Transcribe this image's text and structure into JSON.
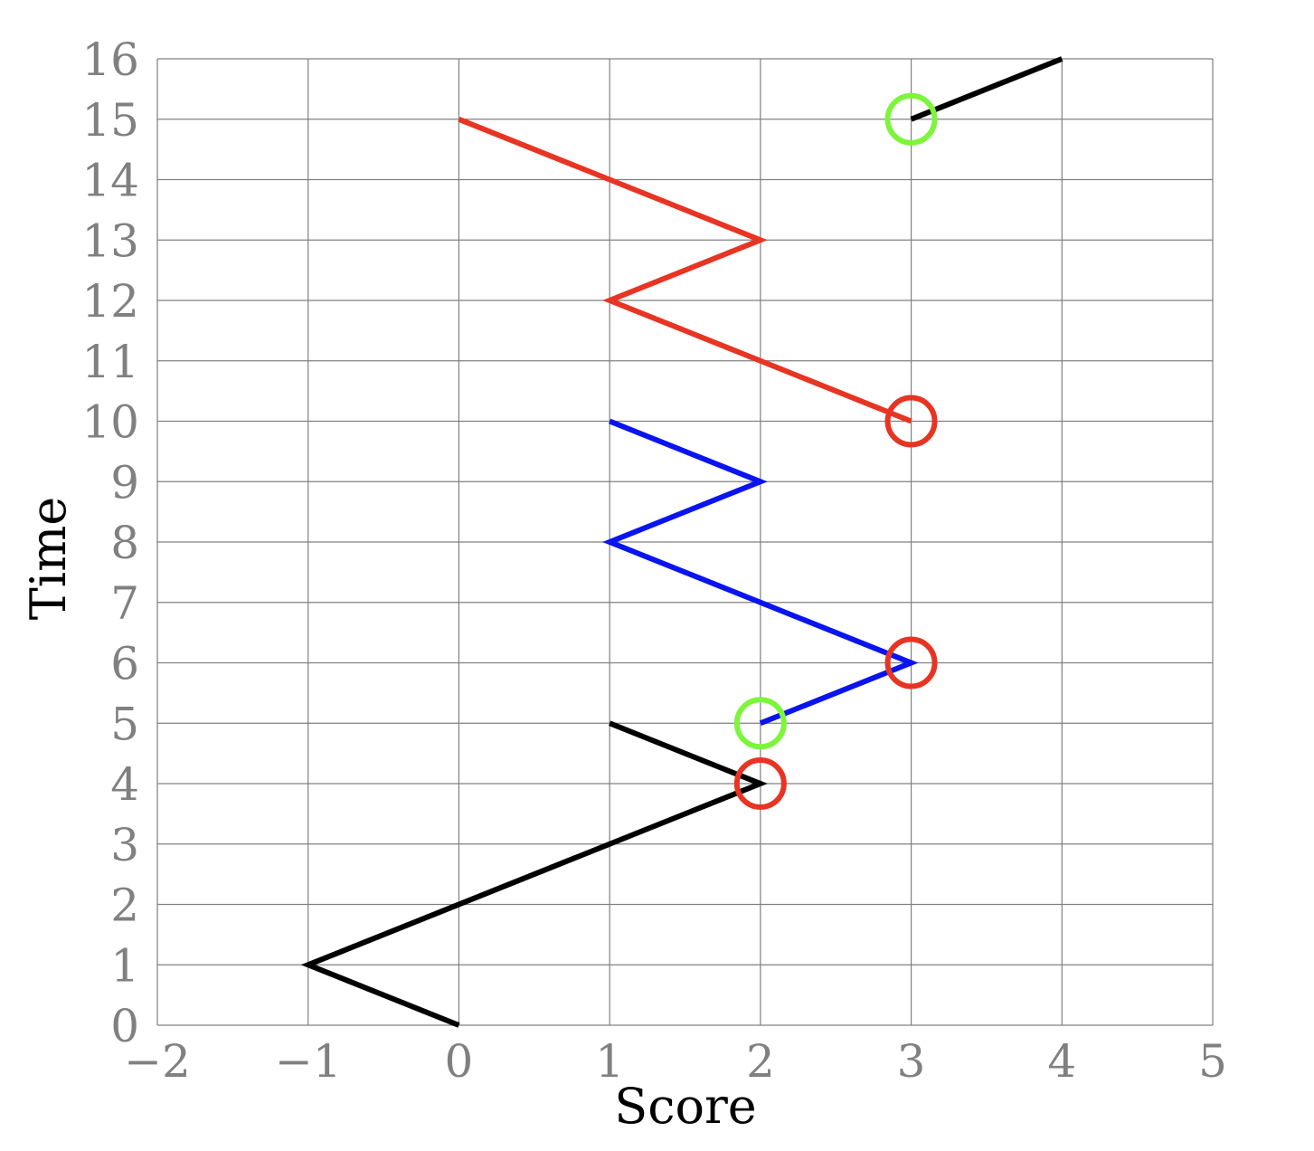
{
  "chart_data": {
    "type": "line",
    "title": "",
    "xlabel": "Score",
    "ylabel": "Time",
    "xlim": [
      -2,
      5
    ],
    "ylim": [
      0,
      16
    ],
    "xticks": [
      -2,
      -1,
      0,
      1,
      2,
      3,
      4,
      5
    ],
    "yticks": [
      0,
      1,
      2,
      3,
      4,
      5,
      6,
      7,
      8,
      9,
      10,
      11,
      12,
      13,
      14,
      15,
      16
    ],
    "xtick_labels": [
      "−2",
      "−1",
      "0",
      "1",
      "2",
      "3",
      "4",
      "5"
    ],
    "ytick_labels": [
      "0",
      "1",
      "2",
      "3",
      "4",
      "5",
      "6",
      "7",
      "8",
      "9",
      "10",
      "11",
      "12",
      "13",
      "14",
      "15",
      "16"
    ],
    "grid": true,
    "series": [
      {
        "color": "#000000",
        "points": [
          [
            0,
            0
          ],
          [
            -1,
            1
          ],
          [
            2,
            4
          ],
          [
            1,
            5
          ]
        ]
      },
      {
        "color": "#0a14f0",
        "points": [
          [
            2,
            5
          ],
          [
            3,
            6
          ],
          [
            1,
            8
          ],
          [
            2,
            9
          ],
          [
            1,
            10
          ]
        ]
      },
      {
        "color": "#e83423",
        "points": [
          [
            3,
            10
          ],
          [
            1,
            12
          ],
          [
            2,
            13
          ],
          [
            0,
            15
          ]
        ]
      },
      {
        "color": "#000000",
        "points": [
          [
            3,
            15
          ],
          [
            4,
            16
          ]
        ]
      }
    ],
    "markers": [
      {
        "x": 2,
        "y": 4,
        "color": "#e83423"
      },
      {
        "x": 2,
        "y": 5,
        "color": "#7cf53a"
      },
      {
        "x": 3,
        "y": 6,
        "color": "#e83423"
      },
      {
        "x": 3,
        "y": 10,
        "color": "#e83423"
      },
      {
        "x": 3,
        "y": 15,
        "color": "#7cf53a"
      }
    ]
  }
}
